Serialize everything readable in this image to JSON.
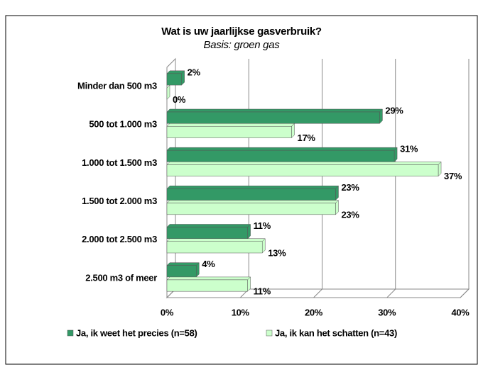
{
  "chart_data": {
    "type": "bar",
    "orientation": "horizontal",
    "title": "Wat is uw jaarlijkse gasverbruik?",
    "subtitle": "Basis: groen gas",
    "categories": [
      "Minder dan 500 m3",
      "500 tot 1.000 m3",
      "1.000 tot 1.500 m3",
      "1.500 tot 2.000 m3",
      "2.000 tot 2.500 m3",
      "2.500 m3 of meer"
    ],
    "series": [
      {
        "name": "Ja, ik weet het precies (n=58)",
        "color": "#339966",
        "values": [
          2,
          29,
          31,
          23,
          11,
          4
        ],
        "value_labels": [
          "2%",
          "29%",
          "31%",
          "23%",
          "11%",
          "4%"
        ]
      },
      {
        "name": "Ja, ik kan het schatten (n=43)",
        "color": "#ccffcc",
        "values": [
          0,
          17,
          37,
          23,
          13,
          11
        ],
        "value_labels": [
          "0%",
          "17%",
          "37%",
          "23%",
          "13%",
          "11%"
        ]
      }
    ],
    "xlim": [
      0,
      40
    ],
    "xticks": [
      {
        "value": 0,
        "label": "0%"
      },
      {
        "value": 10,
        "label": "10%"
      },
      {
        "value": 20,
        "label": "20%"
      },
      {
        "value": 30,
        "label": "30%"
      },
      {
        "value": 40,
        "label": "40%"
      }
    ],
    "grid": true,
    "legend": "bottom"
  }
}
